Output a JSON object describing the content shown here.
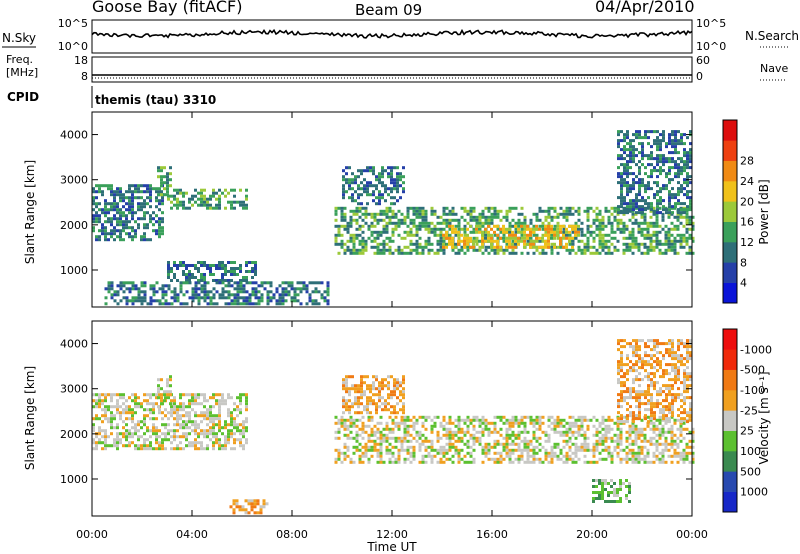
{
  "header": {
    "station": "Goose Bay (fitACF)",
    "beam": "Beam 09",
    "date": "04/Apr/2010"
  },
  "labels": {
    "nsky": "N.Sky",
    "nsearch": "N.Search",
    "freq_line1": "Freq.",
    "freq_line2": "[MHz]",
    "nave": "Nave",
    "cpid": "CPID",
    "cpid_value": "themis (tau) 3310",
    "slant_range": "Slant Range [km]",
    "time_ut": "Time UT",
    "power_label": "Power [dB]",
    "velocity_label": "Velocity [m s⁻¹]"
  },
  "noise_panel": {
    "ticks_left": [
      "10^5",
      "10^0"
    ],
    "ticks_right": [
      "10^5",
      "10^0"
    ]
  },
  "freq_panel": {
    "ticks_left": [
      "18",
      "8"
    ],
    "ticks_right": [
      "60",
      "0"
    ]
  },
  "chart_data": [
    {
      "type": "heatmap",
      "name": "power",
      "x_range_hours": [
        0,
        24
      ],
      "xticks": [
        "00:00",
        "04:00",
        "08:00",
        "12:00",
        "16:00",
        "20:00",
        "00:00"
      ],
      "ylim_km": [
        180,
        4500
      ],
      "yticks": [
        "1000",
        "2000",
        "3000",
        "4000"
      ],
      "colorbar": {
        "ticks": [
          "4",
          "8",
          "12",
          "16",
          "20",
          "24",
          "28"
        ],
        "colors": [
          "#0a14d8",
          "#2540a8",
          "#2e6f78",
          "#3aa05a",
          "#9cc93a",
          "#f0c11a",
          "#f08a14",
          "#ee4010",
          "#dd0d0d"
        ]
      },
      "echo_bands": [
        {
          "t0": 0.0,
          "t1": 2.8,
          "r0": 1700,
          "r1": 2900,
          "level": 2
        },
        {
          "t0": 2.6,
          "t1": 3.2,
          "r0": 2600,
          "r1": 3300,
          "level": 3
        },
        {
          "t0": 3.0,
          "t1": 6.2,
          "r0": 2400,
          "r1": 2800,
          "level": 3
        },
        {
          "t0": 3.0,
          "t1": 6.5,
          "r0": 800,
          "r1": 1200,
          "level": 2
        },
        {
          "t0": 0.5,
          "t1": 9.5,
          "r0": 250,
          "r1": 750,
          "level": 2
        },
        {
          "t0": 9.7,
          "t1": 24.0,
          "r0": 1400,
          "r1": 2400,
          "level": 3
        },
        {
          "t0": 10.0,
          "t1": 12.5,
          "r0": 2500,
          "r1": 3300,
          "level": 2
        },
        {
          "t0": 14.0,
          "t1": 19.5,
          "r0": 1500,
          "r1": 2000,
          "level": 5
        },
        {
          "t0": 21.0,
          "t1": 24.0,
          "r0": 2300,
          "r1": 4100,
          "level": 2
        }
      ]
    },
    {
      "type": "heatmap",
      "name": "velocity",
      "x_range_hours": [
        0,
        24
      ],
      "xticks": [
        "00:00",
        "04:00",
        "08:00",
        "12:00",
        "16:00",
        "20:00",
        "00:00"
      ],
      "ylim_km": [
        180,
        4500
      ],
      "yticks": [
        "1000",
        "2000",
        "3000",
        "4000"
      ],
      "colorbar": {
        "ticks": [
          "1000",
          "500",
          "100",
          "25",
          "-25",
          "-100",
          "-500",
          "-1000"
        ],
        "colors": [
          "#1728c8",
          "#284ab0",
          "#3a8a50",
          "#5cc030",
          "#c8c8c4",
          "#f0a020",
          "#f07a14",
          "#f02a0a",
          "#ee0d0d"
        ]
      },
      "echo_bands": [
        {
          "t0": 0.0,
          "t1": 6.2,
          "r0": 1700,
          "r1": 2900,
          "level": 4
        },
        {
          "t0": 2.6,
          "t1": 3.2,
          "r0": 2600,
          "r1": 3300,
          "level": 4
        },
        {
          "t0": 5.5,
          "t1": 7.0,
          "r0": 280,
          "r1": 550,
          "level": 5
        },
        {
          "t0": 9.7,
          "t1": 24.0,
          "r0": 1400,
          "r1": 2400,
          "level": 4
        },
        {
          "t0": 10.0,
          "t1": 12.5,
          "r0": 2500,
          "r1": 3300,
          "level": 5
        },
        {
          "t0": 20.0,
          "t1": 21.5,
          "r0": 500,
          "r1": 1000,
          "level": 3
        },
        {
          "t0": 21.0,
          "t1": 24.0,
          "r0": 2300,
          "r1": 4100,
          "level": 5
        }
      ]
    }
  ]
}
